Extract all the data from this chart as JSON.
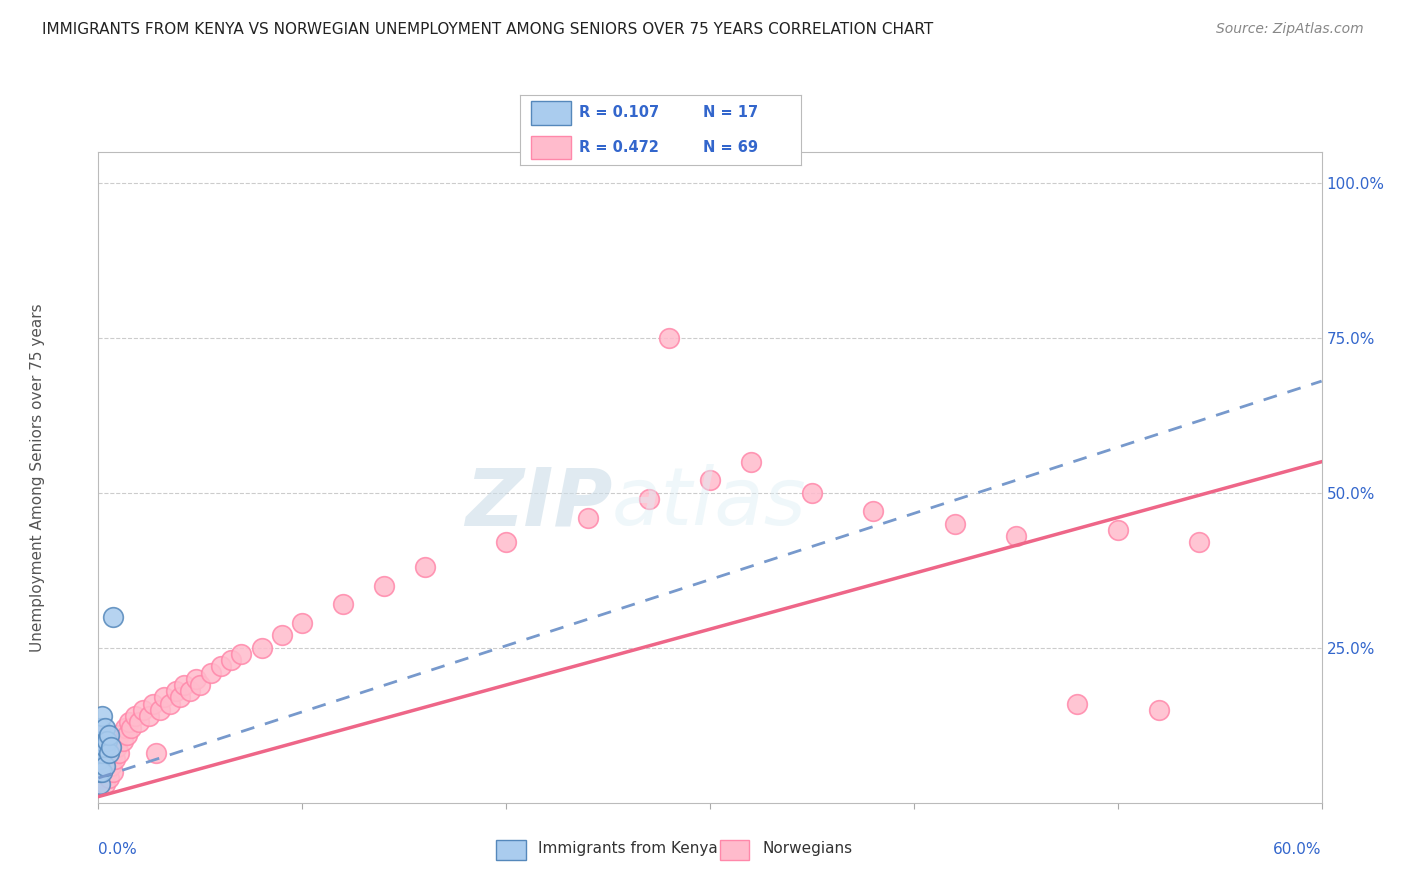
{
  "title": "IMMIGRANTS FROM KENYA VS NORWEGIAN UNEMPLOYMENT AMONG SENIORS OVER 75 YEARS CORRELATION CHART",
  "source": "Source: ZipAtlas.com",
  "ylabel": "Unemployment Among Seniors over 75 years",
  "legend_kenya_r": "R = 0.107",
  "legend_kenya_n": "N = 17",
  "legend_norw_r": "R = 0.472",
  "legend_norw_n": "N = 69",
  "legend_label_kenya": "Immigrants from Kenya",
  "legend_label_norwegians": "Norwegians",
  "color_kenya_fill": "#aaccee",
  "color_kenya_edge": "#5588bb",
  "color_kenya_line": "#7799cc",
  "color_norw_fill": "#ffbbcc",
  "color_norw_edge": "#ff88aa",
  "color_norw_line": "#ee6688",
  "color_grid": "#cccccc",
  "color_title": "#222222",
  "color_source": "#888888",
  "color_tick_label": "#3366cc",
  "color_axis_label": "#555555",
  "background_color": "#ffffff",
  "xmin": 0.0,
  "xmax": 0.6,
  "ymin": 0.0,
  "ymax": 1.05,
  "kenya_x": [
    0.001,
    0.001,
    0.001,
    0.001,
    0.001,
    0.002,
    0.002,
    0.002,
    0.002,
    0.003,
    0.003,
    0.003,
    0.004,
    0.005,
    0.005,
    0.006,
    0.007
  ],
  "kenya_y": [
    0.03,
    0.05,
    0.07,
    0.09,
    0.12,
    0.05,
    0.08,
    0.1,
    0.14,
    0.06,
    0.09,
    0.12,
    0.1,
    0.08,
    0.11,
    0.09,
    0.3
  ],
  "kenya_line_x0": 0.0,
  "kenya_line_y0": 0.04,
  "kenya_line_x1": 0.6,
  "kenya_line_y1": 0.68,
  "norw_line_x0": 0.0,
  "norw_line_y0": 0.01,
  "norw_line_x1": 0.6,
  "norw_line_y1": 0.55,
  "norw_x": [
    0.001,
    0.001,
    0.001,
    0.002,
    0.002,
    0.002,
    0.003,
    0.003,
    0.003,
    0.003,
    0.004,
    0.004,
    0.004,
    0.005,
    0.005,
    0.005,
    0.006,
    0.006,
    0.007,
    0.007,
    0.008,
    0.008,
    0.009,
    0.01,
    0.01,
    0.012,
    0.013,
    0.014,
    0.015,
    0.016,
    0.018,
    0.02,
    0.022,
    0.025,
    0.027,
    0.028,
    0.03,
    0.032,
    0.035,
    0.038,
    0.04,
    0.042,
    0.045,
    0.048,
    0.05,
    0.055,
    0.06,
    0.065,
    0.07,
    0.08,
    0.09,
    0.1,
    0.12,
    0.14,
    0.16,
    0.2,
    0.24,
    0.27,
    0.28,
    0.3,
    0.32,
    0.35,
    0.38,
    0.42,
    0.45,
    0.48,
    0.5,
    0.52,
    0.54
  ],
  "norw_y": [
    0.03,
    0.05,
    0.08,
    0.04,
    0.07,
    0.1,
    0.03,
    0.06,
    0.08,
    0.11,
    0.05,
    0.08,
    0.11,
    0.04,
    0.07,
    0.1,
    0.06,
    0.09,
    0.05,
    0.08,
    0.07,
    0.1,
    0.09,
    0.08,
    0.11,
    0.1,
    0.12,
    0.11,
    0.13,
    0.12,
    0.14,
    0.13,
    0.15,
    0.14,
    0.16,
    0.08,
    0.15,
    0.17,
    0.16,
    0.18,
    0.17,
    0.19,
    0.18,
    0.2,
    0.19,
    0.21,
    0.22,
    0.23,
    0.24,
    0.25,
    0.27,
    0.29,
    0.32,
    0.35,
    0.38,
    0.42,
    0.46,
    0.49,
    0.75,
    0.52,
    0.55,
    0.5,
    0.47,
    0.45,
    0.43,
    0.16,
    0.44,
    0.15,
    0.42
  ]
}
